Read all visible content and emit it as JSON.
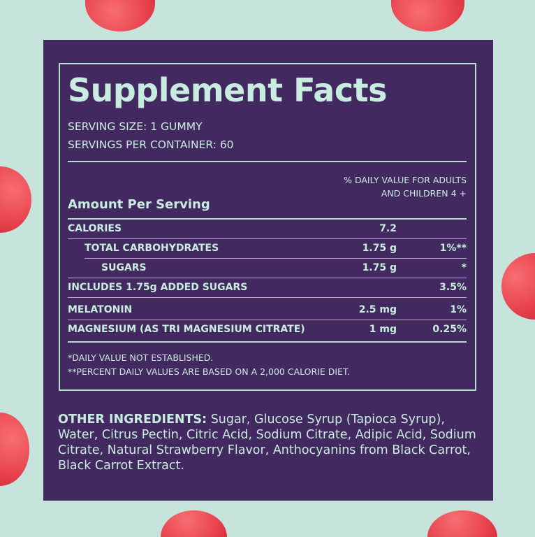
{
  "title": "Supplement Facts",
  "serving_size": "SERVING SIZE: 1 GUMMY",
  "servings_per_container": "SERVINGS PER CONTAINER: 60",
  "dv_header_line1": "% DAILY VALUE FOR ADULTS",
  "dv_header_line2": "AND CHILDREN 4 +",
  "amount_per_serving": "Amount Per Serving",
  "rows": [
    {
      "name": "CALORIES",
      "amount": "7.2",
      "dv": ""
    },
    {
      "name": "TOTAL CARBOHYDRATES",
      "amount": "1.75 g",
      "dv": "1%**"
    },
    {
      "name": "SUGARS",
      "amount": "1.75 g",
      "dv": "*"
    },
    {
      "name": "INCLUDES 1.75g ADDED SUGARS",
      "amount": "",
      "dv": "3.5%"
    },
    {
      "name": "MELATONIN",
      "amount": "2.5 mg",
      "dv": "1%"
    },
    {
      "name": "MAGNESIUM (AS TRI MAGNESIUM CITRATE)",
      "amount": "1 mg",
      "dv": "0.25%"
    }
  ],
  "footnote1": "*DAILY VALUE NOT ESTABLISHED.",
  "footnote2": "**PERCENT DAILY VALUES ARE BASED ON A 2,000 CALORIE DIET.",
  "other_ingredients_label": "OTHER INGREDIENTS:",
  "other_ingredients_text": " Sugar, Glucose Syrup (Tapioca Syrup), Water, Citrus Pectin, Citric Acid, Sodium Citrate, Adipic Acid, Sodium Citrate, Natural Strawberry Flavor, Anthocyanins from Black Carrot, Black Carrot Extract.",
  "colors": {
    "background": "#c6e4dc",
    "panel": "#42295f",
    "text": "#c9ece0",
    "gummy": "#e8434d"
  }
}
